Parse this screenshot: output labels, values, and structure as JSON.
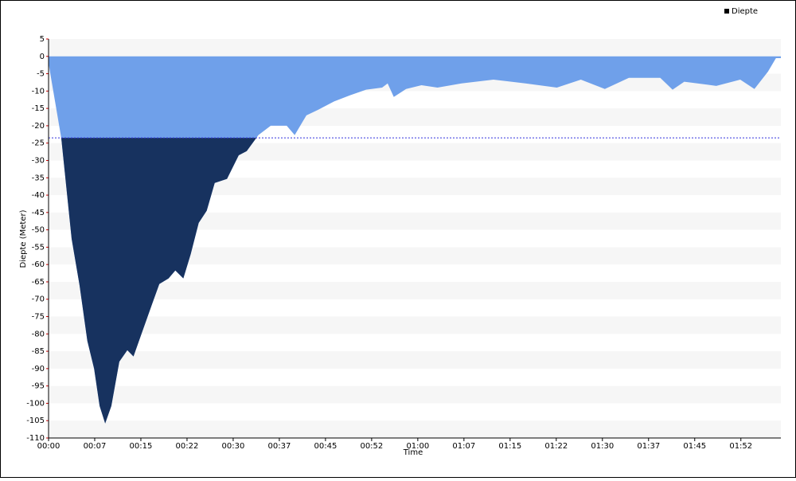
{
  "chart_data": {
    "type": "area",
    "legend": "Diepte",
    "legend_position": "top-right",
    "x_label": "Time",
    "y_label": "Diepte (Meter)",
    "color": "#6fa0ea",
    "deep_color": "#17325f",
    "threshold": -23.5,
    "xlim": [
      0,
      119
    ],
    "ylim": [
      -110,
      5
    ],
    "xticks": [
      {
        "value": 0,
        "label": "00:00"
      },
      {
        "value": 7.5,
        "label": "00:07"
      },
      {
        "value": 15,
        "label": "00:15"
      },
      {
        "value": 22.5,
        "label": "00:22"
      },
      {
        "value": 30,
        "label": "00:30"
      },
      {
        "value": 37.5,
        "label": "00:37"
      },
      {
        "value": 45,
        "label": "00:45"
      },
      {
        "value": 52.5,
        "label": "00:52"
      },
      {
        "value": 60,
        "label": "01:00"
      },
      {
        "value": 67.5,
        "label": "01:07"
      },
      {
        "value": 75,
        "label": "01:15"
      },
      {
        "value": 82.5,
        "label": "01:22"
      },
      {
        "value": 90,
        "label": "01:30"
      },
      {
        "value": 97.5,
        "label": "01:37"
      },
      {
        "value": 105,
        "label": "01:45"
      },
      {
        "value": 112.5,
        "label": "01:52"
      }
    ],
    "yticks": [
      5,
      0,
      -5,
      -10,
      -15,
      -20,
      -25,
      -30,
      -35,
      -40,
      -45,
      -50,
      -55,
      -60,
      -65,
      -70,
      -75,
      -80,
      -85,
      -90,
      -95,
      -100,
      -105,
      -110
    ],
    "x": [
      0,
      2.07,
      3.75,
      5.04,
      6.3,
      7.4,
      8.3,
      9.2,
      10.2,
      11.5,
      12.8,
      13.8,
      15.1,
      16.7,
      18,
      19.5,
      20.6,
      21.9,
      23.1,
      24.4,
      25.7,
      27,
      29,
      30.9,
      32.2,
      34.1,
      36.1,
      38.7,
      40,
      41.9,
      43.8,
      46.4,
      49,
      51.6,
      54.2,
      55.1,
      56.1,
      58.1,
      60.6,
      63.2,
      67.1,
      72.3,
      77.5,
      82.6,
      86.5,
      90.4,
      94.3,
      99.4,
      101.4,
      103.3,
      108.5,
      112.4,
      114.7,
      116.9,
      118.2,
      119
    ],
    "values": [
      -2,
      -23.6,
      -52.6,
      -66,
      -82,
      -90,
      -100.8,
      -105.8,
      -100.8,
      -88,
      -84.7,
      -86.5,
      -80,
      -72,
      -65.6,
      -64,
      -61.7,
      -64,
      -57,
      -48,
      -44.5,
      -36.5,
      -35.3,
      -28.5,
      -27.3,
      -22.7,
      -20,
      -20,
      -22.7,
      -17,
      -15.4,
      -13,
      -11.2,
      -9.6,
      -9,
      -7.8,
      -11.7,
      -9.4,
      -8.3,
      -9,
      -7.8,
      -6.7,
      -7.8,
      -9,
      -6.7,
      -9.4,
      -6.2,
      -6.2,
      -9.6,
      -7.3,
      -8.5,
      -6.7,
      -9.4,
      -4.4,
      -0.5,
      -0.5
    ]
  }
}
